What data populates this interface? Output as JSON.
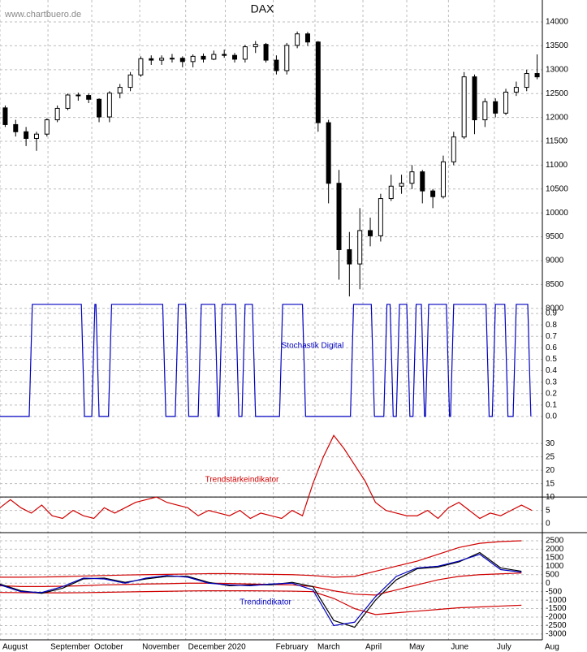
{
  "source": "www.chartbuero.de",
  "chart_data": [
    {
      "type": "candlestick",
      "title": "DAX",
      "color": "#000000",
      "grid": true,
      "xlim": [
        0,
        260
      ],
      "ylim": [
        7860,
        14460
      ],
      "yticks": [
        8000,
        8500,
        9000,
        9500,
        10000,
        10500,
        11000,
        11500,
        12000,
        12500,
        13000,
        13500,
        14000
      ],
      "x": [
        2.5,
        7.5,
        12.5,
        17.5,
        22.5,
        27.5,
        32.5,
        37.5,
        42.5,
        47.5,
        52.5,
        57.5,
        62.5,
        67.5,
        72.5,
        77.5,
        82.5,
        87.5,
        92.5,
        97.5,
        102.5,
        107.5,
        112.5,
        117.5,
        122.5,
        127.5,
        132.5,
        137.5,
        142.5,
        147.5,
        152.5,
        157.5,
        162.5,
        167.5,
        172.5,
        177.5,
        182.5,
        187.5,
        192.5,
        197.5,
        202.5,
        207.5,
        212.5,
        217.5,
        222.5,
        227.5,
        232.5,
        237.5,
        242.5,
        247.5,
        252.5,
        257.5
      ],
      "open": [
        12200,
        11850,
        11700,
        11560,
        11650,
        11950,
        12190,
        12470,
        12460,
        12380,
        12010,
        12510,
        12630,
        12890,
        13230,
        13200,
        13240,
        13240,
        13170,
        13280,
        13220,
        13320,
        13300,
        13220,
        13480,
        13530,
        13200,
        12980,
        13510,
        13750,
        13580,
        11890,
        10620,
        9230,
        8930,
        9630,
        9520,
        10300,
        10560,
        10620,
        10860,
        10460,
        10340,
        11070,
        11590,
        12850,
        11950,
        12330,
        12090,
        12530,
        12630,
        12920
      ],
      "high": [
        12250,
        11950,
        11800,
        11700,
        11980,
        12250,
        12500,
        12520,
        12500,
        12400,
        12550,
        12700,
        12950,
        13280,
        13300,
        13300,
        13330,
        13280,
        13320,
        13340,
        13400,
        13420,
        13350,
        13520,
        13600,
        13560,
        13300,
        13560,
        13800,
        13790,
        13600,
        11950,
        10900,
        9600,
        10100,
        9900,
        10400,
        10800,
        10800,
        11000,
        10900,
        10500,
        11200,
        11700,
        12950,
        12900,
        12400,
        12400,
        12600,
        12750,
        13000,
        13320
      ],
      "low": [
        11800,
        11600,
        11400,
        11300,
        11600,
        11900,
        12150,
        12350,
        12300,
        11900,
        11900,
        12400,
        12550,
        12850,
        13100,
        13100,
        13150,
        13050,
        13050,
        13150,
        13200,
        13250,
        13150,
        13150,
        13350,
        13150,
        12900,
        12900,
        13450,
        13500,
        11700,
        10200,
        8600,
        8250,
        8400,
        9300,
        9400,
        10250,
        10400,
        10500,
        10200,
        10100,
        10300,
        11000,
        11550,
        11650,
        11800,
        12000,
        12050,
        12450,
        12550,
        12800
      ],
      "close": [
        11850,
        11700,
        11560,
        11650,
        11950,
        12190,
        12470,
        12460,
        12380,
        12010,
        12510,
        12630,
        12890,
        13230,
        13200,
        13240,
        13240,
        13170,
        13280,
        13220,
        13320,
        13300,
        13220,
        13480,
        13530,
        13200,
        12980,
        13510,
        13750,
        13580,
        11890,
        10620,
        9230,
        8930,
        9630,
        9520,
        10300,
        10560,
        10620,
        10860,
        10460,
        10340,
        11070,
        11590,
        12850,
        11950,
        12330,
        12090,
        12530,
        12630,
        12920,
        12850
      ]
    },
    {
      "type": "line",
      "title": "Stochastik Digital",
      "title_color": "#0000c0",
      "color": "#0000c0",
      "grid": true,
      "xlim": [
        0,
        260
      ],
      "ylim": [
        -0.1,
        1.0
      ],
      "yticks": [
        {
          "value": 0,
          "label": "0.0"
        },
        0.1,
        0.2,
        0.3,
        0.4,
        0.5,
        0.6,
        0.7,
        0.8,
        0.9
      ],
      "x": [
        0,
        14,
        15.5,
        39,
        40.5,
        44,
        45.5,
        46,
        47.5,
        52,
        53.5,
        78,
        79.5,
        84,
        85.5,
        89,
        90.5,
        95,
        96.5,
        103,
        104.5,
        105,
        106.5,
        113,
        114.5,
        116,
        117.5,
        121,
        122.5,
        134,
        135.5,
        145,
        146.5,
        168,
        169.5,
        178,
        179.5,
        184,
        185.5,
        187,
        188.5,
        190,
        191.5,
        195,
        196.5,
        198,
        199.5,
        202,
        203.5,
        204,
        205.5,
        214,
        215.5,
        216,
        217.5,
        233,
        234.5,
        236,
        237.5,
        242,
        243.5,
        246,
        247.5,
        253,
        254.5
      ],
      "values": [
        0,
        0,
        0.98,
        0.98,
        0,
        0,
        0.98,
        0.98,
        0,
        0,
        0.98,
        0.98,
        0,
        0,
        0.98,
        0.98,
        0,
        0,
        0.98,
        0.98,
        0,
        0,
        0.98,
        0.98,
        0,
        0,
        0.98,
        0.98,
        0,
        0,
        0.98,
        0.98,
        0,
        0,
        0.98,
        0.98,
        0,
        0,
        0.98,
        0.98,
        0,
        0,
        0.98,
        0.98,
        0,
        0,
        0.98,
        0.98,
        0,
        0,
        0.98,
        0.98,
        0,
        0,
        0.98,
        0.98,
        0,
        0,
        0.98,
        0.98,
        0,
        0,
        0.98,
        0.98,
        0
      ]
    },
    {
      "type": "line",
      "title": "Trendstärkeindikator",
      "title_color": "#d00000",
      "color": "#d00000",
      "grid": true,
      "xlim": [
        0,
        260
      ],
      "ylim": [
        -3,
        34
      ],
      "yticks": [
        0,
        5,
        10,
        15,
        20,
        25,
        30
      ],
      "hline": 10,
      "x": [
        0,
        5,
        10,
        15,
        20,
        25,
        30,
        35,
        40,
        45,
        50,
        55,
        60,
        65,
        70,
        75,
        80,
        85,
        90,
        95,
        100,
        105,
        110,
        115,
        120,
        125,
        130,
        135,
        140,
        145,
        150,
        155,
        160,
        165,
        170,
        175,
        180,
        185,
        190,
        195,
        200,
        205,
        210,
        215,
        220,
        225,
        230,
        235,
        240,
        245,
        250,
        255
      ],
      "values": [
        6,
        9,
        6,
        4,
        7,
        3,
        2,
        5,
        3,
        2,
        6,
        4,
        6,
        8,
        9,
        10,
        8,
        7,
        6,
        3,
        5,
        4,
        3,
        5,
        2,
        4,
        3,
        2,
        5,
        3,
        15,
        25,
        33,
        28,
        22,
        16,
        8,
        5,
        4,
        3,
        3,
        5,
        2,
        6,
        8,
        5,
        2,
        4,
        3,
        5,
        7,
        5
      ]
    },
    {
      "type": "line",
      "title": "Trendindikator",
      "title_color": "#0000c0",
      "grid": true,
      "xlim": [
        0,
        260
      ],
      "ylim": [
        -3340,
        2930
      ],
      "yticks": [
        -3000,
        -2500,
        -2000,
        -1500,
        -1000,
        -500,
        0,
        500,
        1000,
        1500,
        2000,
        2500
      ],
      "xticks": [
        {
          "value": 0,
          "label": "August"
        },
        {
          "value": 23,
          "label": "September"
        },
        {
          "value": 44,
          "label": "October"
        },
        {
          "value": 67,
          "label": "November"
        },
        {
          "value": 89,
          "label": "December"
        },
        {
          "value": 108,
          "label": "2020"
        },
        {
          "value": 131,
          "label": "February"
        },
        {
          "value": 151,
          "label": "March"
        },
        {
          "value": 174,
          "label": "April"
        },
        {
          "value": 195,
          "label": "May"
        },
        {
          "value": 215,
          "label": "June"
        },
        {
          "value": 237,
          "label": "July"
        },
        {
          "value": 260,
          "label": "Aug"
        }
      ],
      "x": [
        0,
        10,
        20,
        30,
        40,
        50,
        60,
        70,
        80,
        90,
        100,
        110,
        120,
        130,
        140,
        150,
        160,
        170,
        180,
        190,
        200,
        210,
        220,
        230,
        240,
        250
      ],
      "series": [
        {
          "color": "#d00000",
          "values": [
            350,
            350,
            360,
            380,
            420,
            450,
            480,
            500,
            520,
            540,
            560,
            560,
            540,
            520,
            500,
            450,
            350,
            400,
            700,
            1000,
            1300,
            1700,
            2100,
            2350,
            2450,
            2500
          ]
        },
        {
          "color": "#d00000",
          "values": [
            -150,
            -200,
            -200,
            -180,
            -150,
            -100,
            -80,
            -50,
            -30,
            0,
            0,
            -20,
            -50,
            -80,
            -100,
            -200,
            -450,
            -650,
            -700,
            -400,
            -100,
            200,
            400,
            500,
            550,
            600
          ]
        },
        {
          "color": "#d00000",
          "values": [
            -550,
            -560,
            -570,
            -570,
            -560,
            -540,
            -520,
            -500,
            -480,
            -460,
            -450,
            -450,
            -450,
            -460,
            -470,
            -500,
            -900,
            -1500,
            -1850,
            -1750,
            -1650,
            -1550,
            -1450,
            -1400,
            -1350,
            -1300
          ]
        },
        {
          "color": "#000000",
          "values": [
            -50,
            -450,
            -600,
            -300,
            250,
            300,
            50,
            250,
            400,
            400,
            50,
            -150,
            -100,
            -100,
            50,
            -200,
            -2200,
            -2600,
            -1000,
            200,
            850,
            950,
            1250,
            1800,
            900,
            700
          ]
        },
        {
          "color": "#0000c0",
          "values": [
            -100,
            -500,
            -550,
            -200,
            300,
            250,
            0,
            300,
            450,
            350,
            0,
            -100,
            -150,
            -50,
            0,
            -400,
            -2500,
            -2300,
            -800,
            400,
            900,
            1000,
            1300,
            1700,
            800,
            650
          ]
        }
      ]
    }
  ]
}
